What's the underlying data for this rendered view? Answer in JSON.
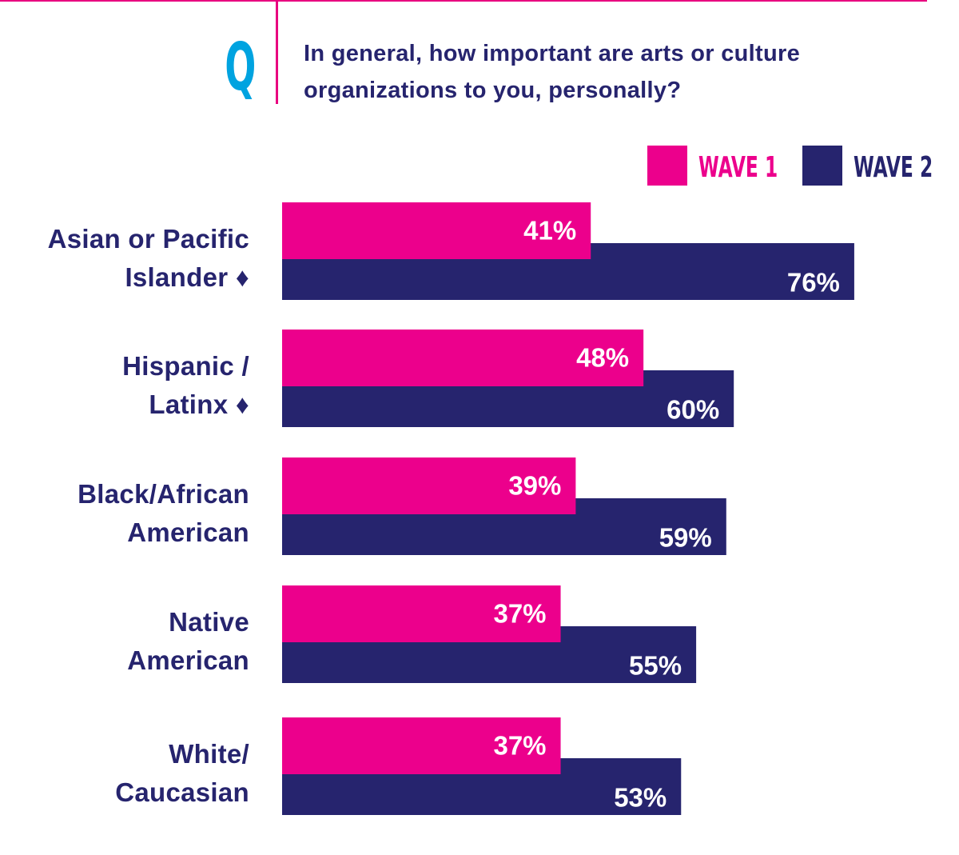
{
  "header": {
    "q_letter": "Q",
    "question": "In general, how important are arts or culture organizations to you, personally?"
  },
  "colors": {
    "accent": "#e8007f",
    "wave1": "#ec008c",
    "wave2": "#26246e",
    "q_blue": "#00a3e0"
  },
  "chart_data": {
    "type": "bar",
    "orientation": "horizontal",
    "title": "In general, how important are arts or culture organizations to you, personally?",
    "categories": [
      "Asian or Pacific Islander ♦",
      "Hispanic / Latinx ♦",
      "Black/African American",
      "Native American",
      "White/ Caucasian"
    ],
    "category_lines": [
      [
        "Asian or Pacific",
        "Islander ♦"
      ],
      [
        "Hispanic /",
        "Latinx ♦"
      ],
      [
        "Black/African",
        "American"
      ],
      [
        "Native",
        "American"
      ],
      [
        "White/",
        "Caucasian"
      ]
    ],
    "series": [
      {
        "name": "WAVE 1",
        "values": [
          41,
          48,
          39,
          37,
          37
        ],
        "labels": [
          "41%",
          "48%",
          "39%",
          "37%",
          "37%"
        ]
      },
      {
        "name": "WAVE 2",
        "values": [
          76,
          60,
          59,
          55,
          53
        ],
        "labels": [
          "76%",
          "60%",
          "59%",
          "55%",
          "53%"
        ]
      }
    ],
    "value_unit": "%",
    "xlim": [
      0,
      100
    ],
    "legend": "top-right",
    "grid": false
  }
}
